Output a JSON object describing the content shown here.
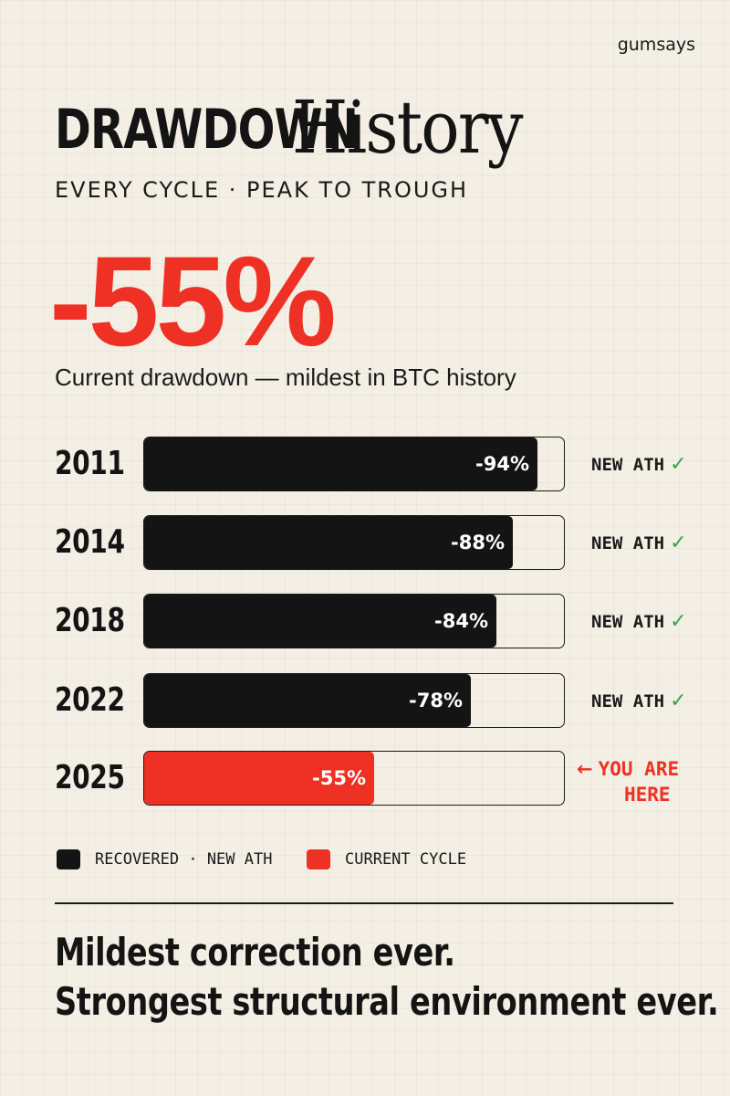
{
  "brand": "gumsays",
  "title": {
    "bold": "DRAWDOWN",
    "serif": "History"
  },
  "subtitle": "EVERY CYCLE · PEAK TO TROUGH",
  "headline": {
    "value": "-55%",
    "caption": "Current drawdown — mildest in BTC history"
  },
  "colors": {
    "recovered": "#141414",
    "current": "#ee3124",
    "check": "#3aa34a"
  },
  "chart_data": {
    "type": "bar",
    "orientation": "horizontal",
    "categories": [
      "2011",
      "2014",
      "2018",
      "2022",
      "2025"
    ],
    "values": [
      -94,
      -88,
      -84,
      -78,
      -55
    ],
    "value_labels": [
      "-94%",
      "-88%",
      "-84%",
      "-78%",
      "-55%"
    ],
    "series_kind": [
      "recovered",
      "recovered",
      "recovered",
      "recovered",
      "current"
    ],
    "status": [
      "NEW ATH",
      "NEW ATH",
      "NEW ATH",
      "NEW ATH",
      ""
    ],
    "xlim": [
      0,
      -100
    ],
    "legend": [
      {
        "label": "RECOVERED · NEW ATH",
        "color": "#141414"
      },
      {
        "label": "CURRENT CYCLE",
        "color": "#ee3124"
      }
    ],
    "annotation": {
      "line1": "YOU ARE",
      "line2": "HERE",
      "arrow": "←"
    }
  },
  "check_icon": "✓",
  "closing": {
    "line1": "Mildest correction ever.",
    "line2": "Strongest structural environment ever."
  }
}
